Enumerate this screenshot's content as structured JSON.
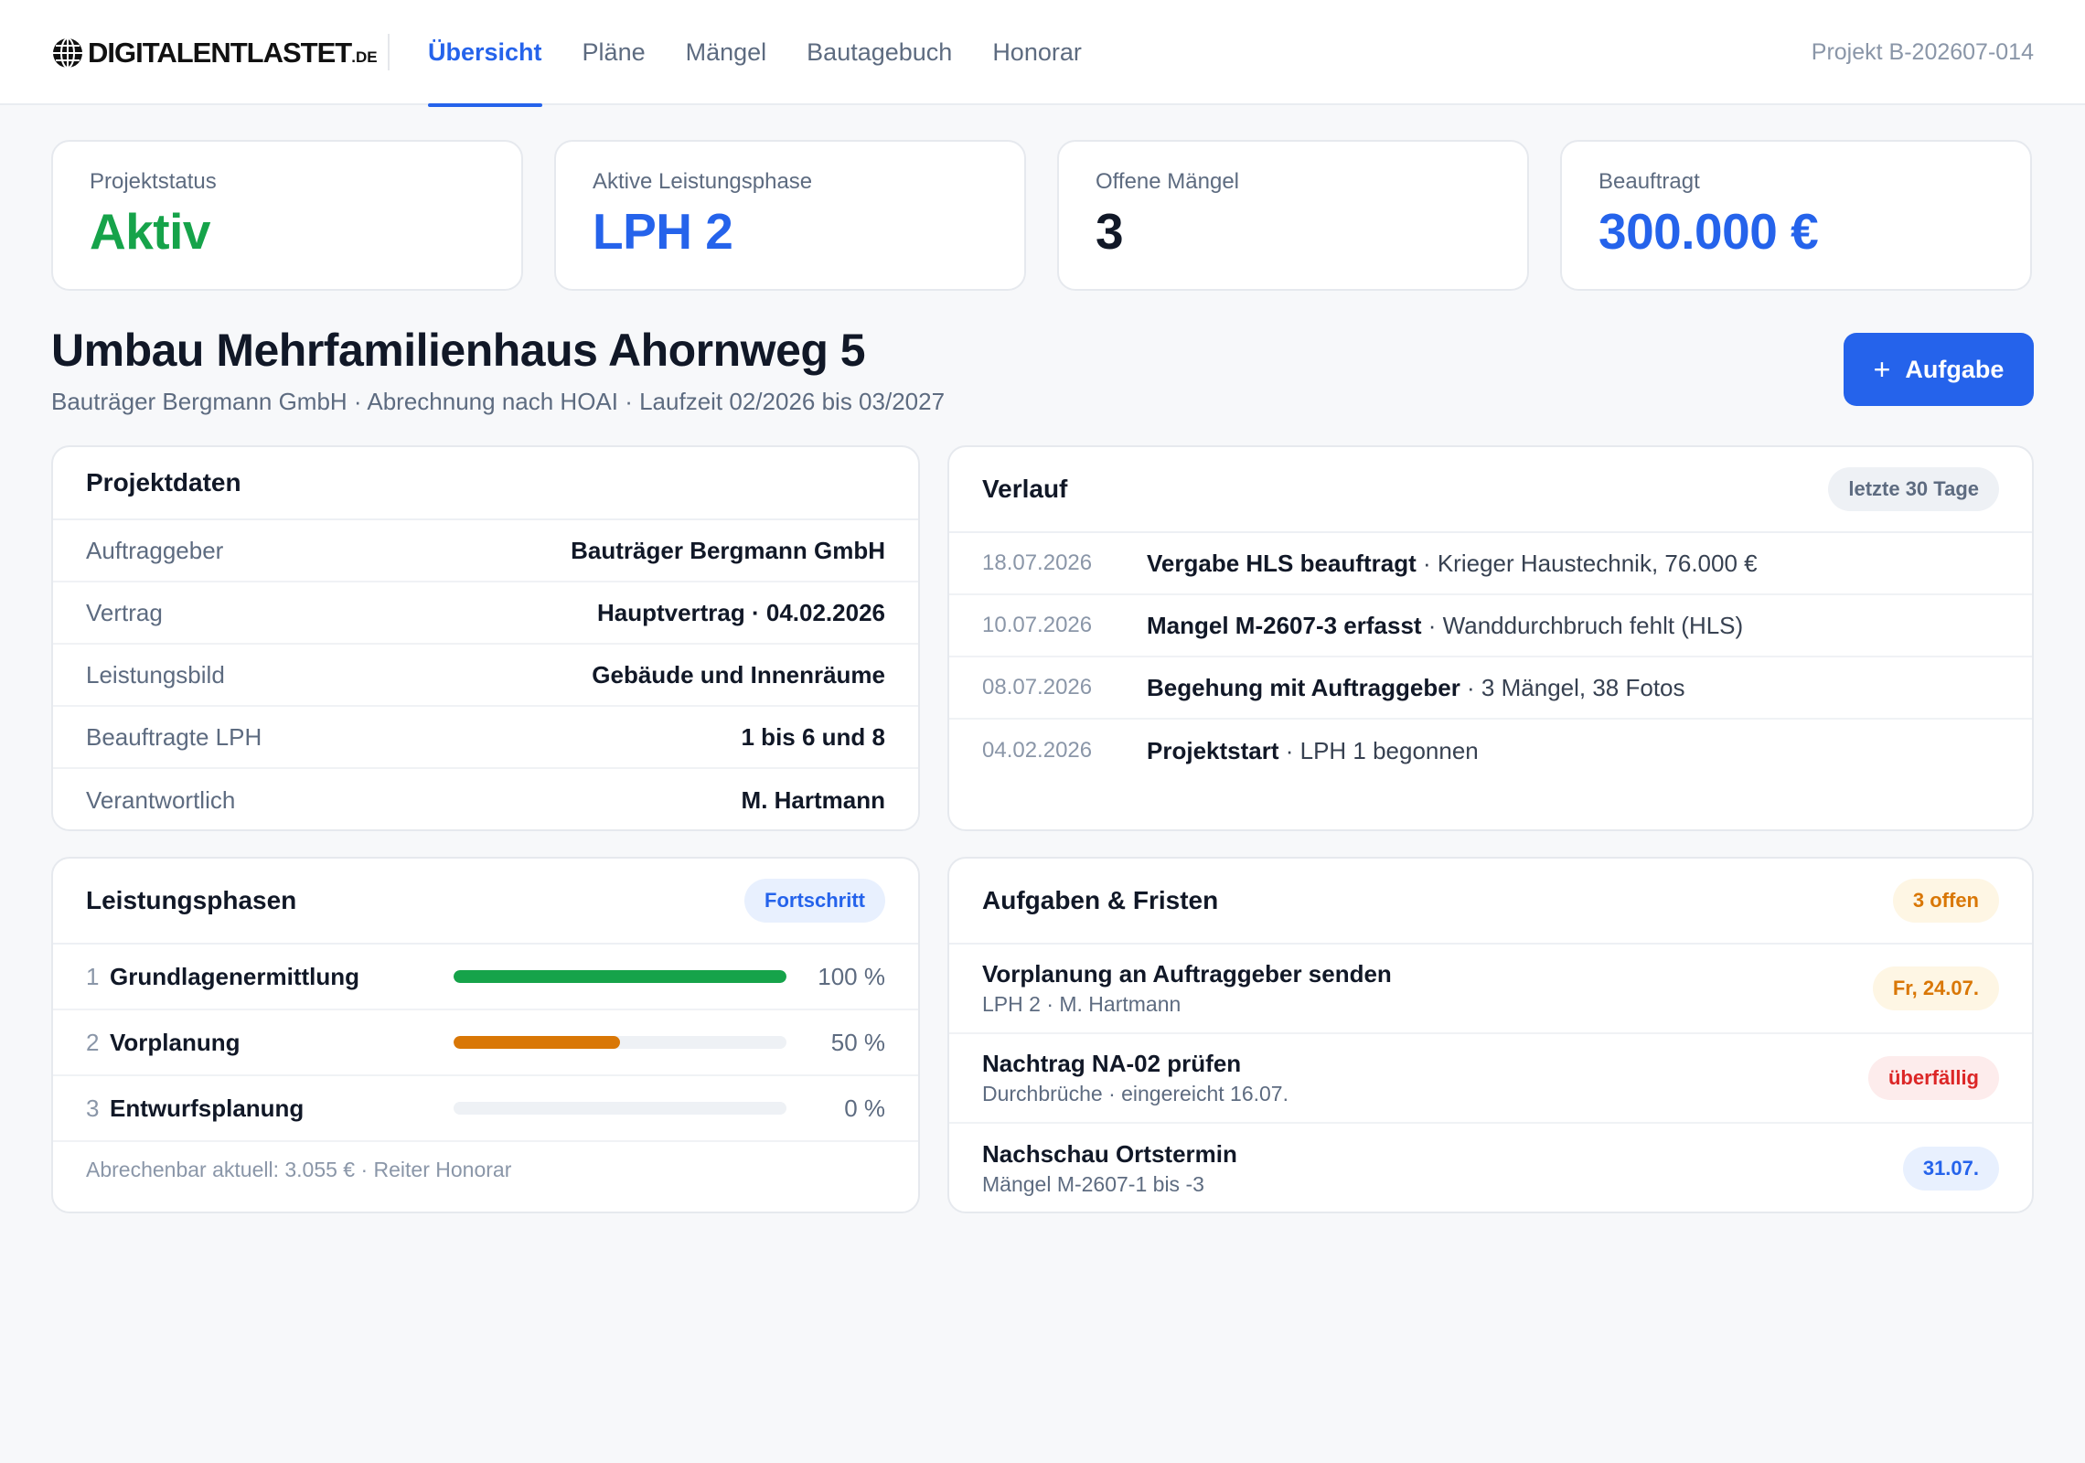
{
  "header": {
    "logo": {
      "main": "DIGITALENTLASTET",
      "suffix": ".DE",
      "icon": "globe-icon"
    },
    "tabs": [
      {
        "label": "Übersicht",
        "active": true
      },
      {
        "label": "Pläne",
        "active": false
      },
      {
        "label": "Mängel",
        "active": false
      },
      {
        "label": "Bautagebuch",
        "active": false
      },
      {
        "label": "Honorar",
        "active": false
      }
    ],
    "project_id": "Projekt B-202607-014"
  },
  "kpis": [
    {
      "label": "Projektstatus",
      "value": "Aktiv",
      "color": "#16a34a"
    },
    {
      "label": "Aktive Leistungsphase",
      "value": "LPH 2",
      "color": "#2563eb"
    },
    {
      "label": "Offene Mängel",
      "value": "3",
      "color": "#111827"
    },
    {
      "label": "Beauftragt",
      "value": "300.000 €",
      "color": "#2563eb"
    }
  ],
  "page": {
    "title": "Umbau Mehrfamilienhaus Ahornweg 5",
    "subtitle": "Bauträger Bergmann GmbH · Abrechnung nach HOAI · Laufzeit 02/2026 bis 03/2027",
    "add_button": {
      "icon": "plus-icon",
      "plus": "+",
      "label": "Aufgabe"
    }
  },
  "projektdaten": {
    "title": "Projektdaten",
    "rows": [
      {
        "key": "Auftraggeber",
        "value": "Bauträger Bergmann GmbH"
      },
      {
        "key": "Vertrag",
        "value": "Hauptvertrag · 04.02.2026"
      },
      {
        "key": "Leistungsbild",
        "value": "Gebäude und Innenräume"
      },
      {
        "key": "Beauftragte LPH",
        "value": "1 bis 6 und 8"
      },
      {
        "key": "Verantwortlich",
        "value": "M. Hartmann"
      }
    ]
  },
  "verlauf": {
    "title": "Verlauf",
    "badge": "letzte 30 Tage",
    "entries": [
      {
        "date": "18.07.2026",
        "title": "Vergabe HLS beauftragt",
        "detail": " · Krieger Haustechnik, 76.000 €"
      },
      {
        "date": "10.07.2026",
        "title": "Mangel M-2607-3 erfasst",
        "detail": " · Wanddurchbruch fehlt (HLS)"
      },
      {
        "date": "08.07.2026",
        "title": "Begehung mit Auftraggeber",
        "detail": " · 3 Mängel, 38 Fotos"
      },
      {
        "date": "04.02.2026",
        "title": "Projektstart",
        "detail": " · LPH 1 begonnen"
      }
    ]
  },
  "leistungsphasen": {
    "title": "Leistungsphasen",
    "badge": "Fortschritt",
    "phases": [
      {
        "num": "1",
        "name": "Grundlagenermittlung",
        "progress": 100,
        "pct_label": "100 %",
        "color": "#16a34a"
      },
      {
        "num": "2",
        "name": "Vorplanung",
        "progress": 50,
        "pct_label": "50 %",
        "color": "#d97706"
      },
      {
        "num": "3",
        "name": "Entwurfsplanung",
        "progress": 0,
        "pct_label": "0 %",
        "color": "#d1d5db"
      }
    ],
    "footer": "Abrechenbar aktuell: 3.055 € · Reiter Honorar"
  },
  "aufgaben": {
    "title": "Aufgaben & Fristen",
    "badge": "3 offen",
    "items": [
      {
        "title": "Vorplanung an Auftraggeber senden",
        "sub": "LPH 2 · M. Hartmann",
        "badge": "Fr, 24.07.",
        "badge_color": "#d97706",
        "badge_bg": "#fef6e4"
      },
      {
        "title": "Nachtrag NA-02 prüfen",
        "sub": "Durchbrüche · eingereicht 16.07.",
        "badge": "überfällig",
        "badge_color": "#dc2626",
        "badge_bg": "#fdecec"
      },
      {
        "title": "Nachschau Ortstermin",
        "sub": "Mängel M-2607-1 bis -3",
        "badge": "31.07.",
        "badge_color": "#2563eb",
        "badge_bg": "#e8f0fe"
      }
    ]
  }
}
